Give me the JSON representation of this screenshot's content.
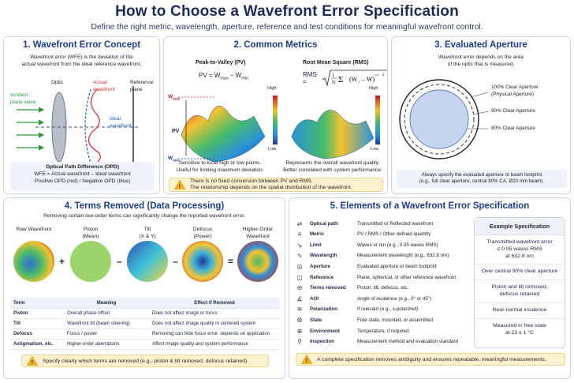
{
  "header": {
    "title": "How to Choose a Wavefront Error Specification",
    "subtitle": "Define the right metric, wavelength, aperture, reference and test conditions for meaningful wavefront control."
  },
  "p1": {
    "title": "1. Wavefront Error Concept",
    "intro_1": "Wavefront error (WFE) is the deviation of the",
    "intro_2": "actual wavefront from the ideal reference wavefront.",
    "optic": "Optic",
    "actual": "Actual\nwavefront",
    "ref_plane": "Reference\nplane",
    "incident": "Incident\nplane wave",
    "ideal": "Ideal\nwavefront",
    "opd_title": "Optical Path Difference (OPD)",
    "opd_eq": "WFE = Actual wavefront – Ideal wavefront",
    "opd_sign": "Positive OPD (red) / Negative OPD (blue)"
  },
  "p2": {
    "title": "2. Common Metrics",
    "pv_title": "Peak-to-Valley (PV)",
    "pv_eq": "PV = W",
    "pv_eq_max": "max",
    "pv_eq_mid": " – W",
    "pv_eq_min": "min",
    "rms_title": "Root Mean Square (RMS)",
    "rms_lhs": "RMS =",
    "wmax": "W",
    "wmax_sub": "max",
    "wmin": "W",
    "wmin_sub": "min",
    "pv_label": "PV",
    "high": "High",
    "low": "Low",
    "pv_note_1": "Sensitive to local high or low points.",
    "pv_note_2": "Useful for limiting maximum deviation.",
    "rms_note_1": "Represents the overall wavefront quality.",
    "rms_note_2": "Better correlated with system performance.",
    "warn_1": "There is no fixed conversion between PV and RMS.",
    "warn_2": "The relationship depends on the spatial distribution of the wavefront."
  },
  "p3": {
    "title": "3. Evaluated Aperture",
    "intro_1": "Wavefront error depends on the area",
    "intro_2": "of the optic that is measured.",
    "a100": "100% Clear Aperture\n(Physical Aperture)",
    "a90": "90% Clear Aperture",
    "a80": "80% Clear Aperture",
    "note_1": "Always specify the evaluated aperture or beam footprint",
    "note_2": "(e.g., full clear aperture, central 90% CA, Ø20 mm beam)."
  },
  "p4": {
    "title": "4. Terms Removed (Data Processing)",
    "intro": "Removing certain low-order terms can significantly change the reported wavefront error.",
    "maps": [
      {
        "label": "Raw Wavefront"
      },
      {
        "label": "Piston\n(Mean)"
      },
      {
        "label": "Tilt\n(X & Y)"
      },
      {
        "label": "Defocus\n(Power)"
      },
      {
        "label": "Higher-Order\nWavefront"
      }
    ],
    "ops": [
      "+",
      "–",
      "–",
      "="
    ],
    "table_headers": [
      "Term",
      "Meaning",
      "Effect if Removed"
    ],
    "table_rows": [
      [
        "Piston",
        "Overall phase offset",
        "Does not affect image or focus"
      ],
      [
        "Tilt",
        "Wavefront tilt (beam steering)",
        "Does not affect image quality in centered system"
      ],
      [
        "Defocus",
        "Focus / power",
        "Removing can hide focus error; depends on application"
      ],
      [
        "Astigmatism, etc.",
        "Higher-order aberrations",
        "Affect image quality and system performance"
      ]
    ],
    "warn": "Specify clearly which terms are removed (e.g., piston & tilt removed, defocus retained)."
  },
  "p5": {
    "title": "5. Elements of a Wavefront Error Specification",
    "elements": [
      {
        "icon": "⇄",
        "key": "Optical path",
        "val": "Transmitted or Reflected wavefront"
      },
      {
        "icon": "≡",
        "key": "Metric",
        "val": "PV / RMS / Other defined quantity"
      },
      {
        "icon": "↘",
        "key": "Limit",
        "val": "Waves or nm (e.g., 0.05 waves RMS)"
      },
      {
        "icon": "∿",
        "key": "Wavelength",
        "val": "Measurement wavelength (e.g., 632.8 nm)"
      },
      {
        "icon": "◎",
        "key": "Aperture",
        "val": "Evaluated aperture or beam footprint"
      },
      {
        "icon": "◫",
        "key": "Reference",
        "val": "Plane, spherical, or other reference wavefront"
      },
      {
        "icon": "⊖",
        "key": "Terms removed",
        "val": "Piston, tilt, defocus, etc."
      },
      {
        "icon": "∡",
        "key": "AOI",
        "val": "Angle of incidence (e.g., 0° or 45°)"
      },
      {
        "icon": "≋",
        "key": "Polarization",
        "val": "If relevant (e.g., s-polarized)"
      },
      {
        "icon": "⚙",
        "key": "State",
        "val": "Free state, mounted, or assembled"
      },
      {
        "icon": "⊕",
        "key": "Environment",
        "val": "Temperature, if required"
      },
      {
        "icon": "⚲",
        "key": "Inspection",
        "val": "Measurement method and evaluation standard"
      }
    ],
    "example_title": "Example Specification",
    "example_items": [
      "Transmitted wavefront error\n≤ 0.05 waves RMS\nat 632.8 nm",
      "Over central 90% clear aperture",
      "Piston and tilt removed,\ndefocus retained",
      "Near-normal incidence",
      "Measured in free state\nat 23 ± 1 °C"
    ],
    "warn": "A complete specification removes ambiguity and ensures repeatable, meaningful measurements."
  }
}
